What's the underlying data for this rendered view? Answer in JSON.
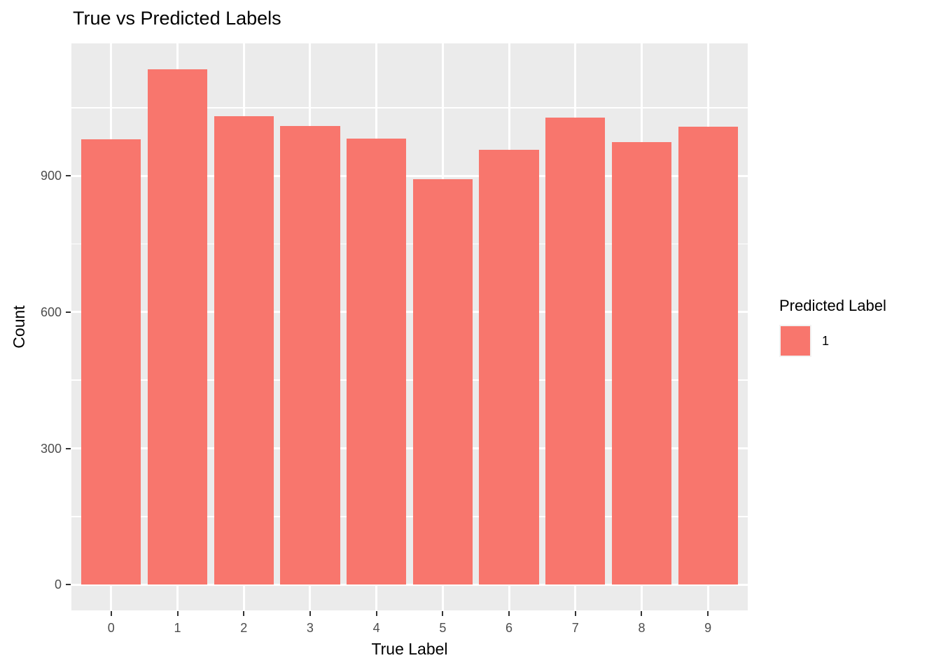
{
  "chart_data": {
    "type": "bar",
    "title": "True vs Predicted Labels",
    "xlabel": "True Label",
    "ylabel": "Count",
    "categories": [
      "0",
      "1",
      "2",
      "3",
      "4",
      "5",
      "6",
      "7",
      "8",
      "9"
    ],
    "series": [
      {
        "name": "1",
        "values": [
          980,
          1135,
          1032,
          1010,
          982,
          892,
          958,
          1028,
          974,
          1009
        ]
      }
    ],
    "y_major_ticks": [
      0,
      300,
      600,
      900
    ],
    "y_minor_ticks": [
      150,
      450,
      750,
      1050
    ],
    "ylim": [
      -56.75,
      1191.75
    ],
    "bar_width_fraction": 0.9,
    "grid": "on",
    "legend": {
      "title": "Predicted Label",
      "position": "right",
      "entries": [
        {
          "label": "1",
          "color": "#F8766D"
        }
      ]
    },
    "colors": {
      "bar_fill": "#F8766D",
      "panel_background": "#EBEBEB",
      "gridline": "#FFFFFF",
      "tick_label": "#4D4D4D",
      "tick_mark": "#333333",
      "text": "#000000",
      "legend_key_background": "#F2F2F2",
      "figure_background": "#FFFFFF"
    }
  }
}
